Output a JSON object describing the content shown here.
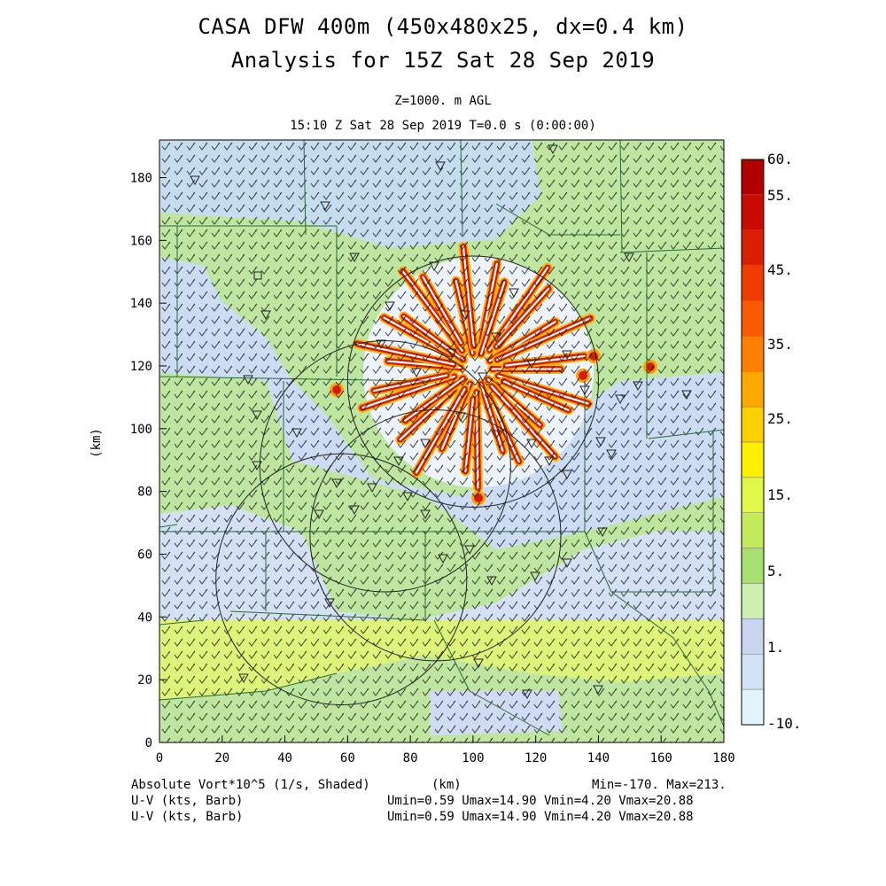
{
  "title": {
    "line1": "CASA DFW 400m (450x480x25, dx=0.4 km)",
    "line2": "Analysis for 15Z Sat 28 Sep 2019"
  },
  "subtitle": {
    "level": "Z=1000. m AGL",
    "time": "15:10 Z Sat 28 Sep 2019    T=0.0 s (0:00:00)"
  },
  "axes": {
    "x_label": "(km)",
    "y_label": "(km)",
    "x_ticks": [
      "0",
      "20",
      "40",
      "60",
      "80",
      "100",
      "120",
      "140",
      "160",
      "180"
    ],
    "y_ticks": [
      "0",
      "20",
      "40",
      "60",
      "80",
      "100",
      "120",
      "140",
      "160",
      "180"
    ]
  },
  "colorbar": {
    "labels": [
      "60.",
      "55.",
      "45.",
      "35.",
      "25.",
      "15.",
      "5.",
      "1.",
      "-10."
    ],
    "colors": [
      "#b00000",
      "#c80a00",
      "#dc1e00",
      "#ee3c00",
      "#fa5a00",
      "#ff8000",
      "#ffa800",
      "#ffd000",
      "#fff000",
      "#e0f84a",
      "#c4ec5a",
      "#a8e070",
      "#cdf0ae",
      "#c8d4f0",
      "#d0e4f6",
      "#e2f4fc"
    ]
  },
  "footer": {
    "field": "Absolute Vort*10^5 (1/s, Shaded)",
    "units": "(km)",
    "minmax": "Min=-170. Max=213.",
    "wind1": "U-V (kts, Barb)",
    "wind1_stats": "Umin=0.59  Umax=14.90  Vmin=4.20  Vmax=20.88",
    "wind2": "U-V (kts, Barb)",
    "wind2_stats": "Umin=0.59  Umax=14.90  Vmin=4.20  Vmax=20.88"
  },
  "map_data": {
    "x_range_km": [
      0,
      180
    ],
    "y_range_km": [
      0,
      192
    ],
    "radar_rings": [
      {
        "cx": 100,
        "cy": 115,
        "r": 40
      },
      {
        "cx": 72,
        "cy": 88,
        "r": 40
      },
      {
        "cx": 58,
        "cy": 52,
        "r": 40
      },
      {
        "cx": 88,
        "cy": 66,
        "r": 40
      }
    ],
    "streak_center": {
      "x": 101,
      "y": 119
    }
  }
}
